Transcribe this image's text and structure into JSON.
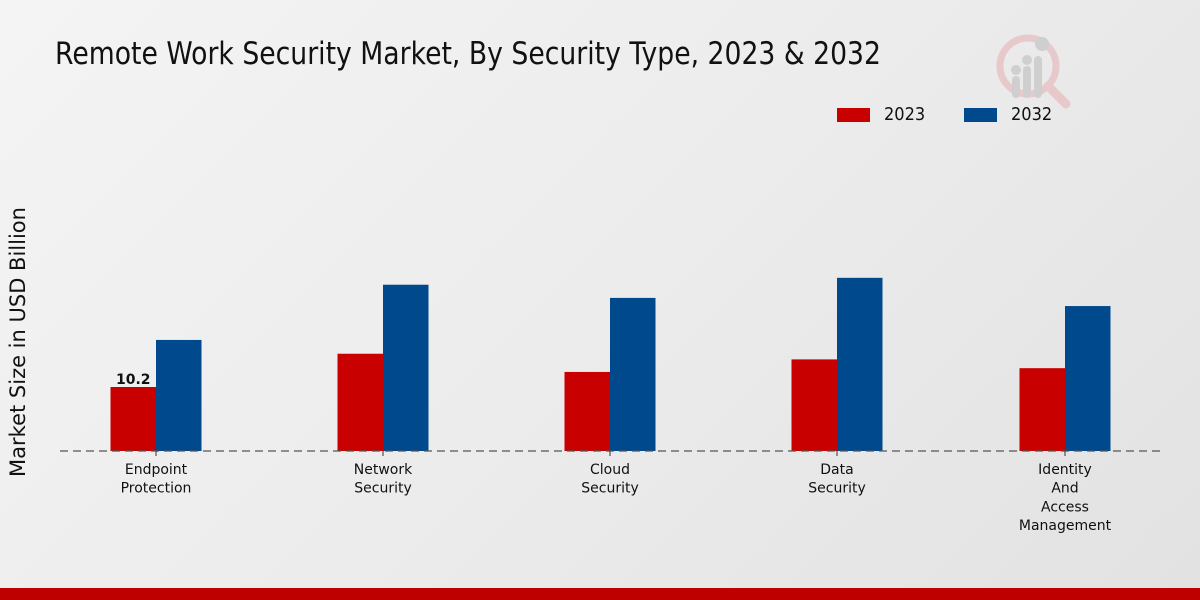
{
  "chart_data": {
    "type": "bar",
    "title": "Remote Work Security Market, By Security Type, 2023 & 2032",
    "xlabel": "",
    "ylabel": "Market Size in USD Billion",
    "categories": [
      [
        "Endpoint",
        "Protection"
      ],
      [
        "Network",
        "Security"
      ],
      [
        "Cloud",
        "Security"
      ],
      [
        "Data",
        "Security"
      ],
      [
        "Identity",
        "And",
        "Access",
        "Management"
      ]
    ],
    "series": [
      {
        "name": "2023",
        "color": "#c80000",
        "values": [
          10.2,
          15.5,
          12.6,
          14.6,
          13.2
        ]
      },
      {
        "name": "2032",
        "color": "#00498d",
        "values": [
          17.7,
          26.5,
          24.4,
          27.6,
          23.1
        ]
      }
    ],
    "data_labels": [
      {
        "series": 0,
        "index": 0,
        "text": "10.2"
      }
    ],
    "ylim": [
      0,
      30
    ],
    "grid": false,
    "legend": {
      "placement": "top-right",
      "entries": [
        "2023",
        "2032"
      ]
    }
  },
  "branding": {
    "logo": "market-research-logo-icon",
    "footer_color": "#bf0000"
  }
}
